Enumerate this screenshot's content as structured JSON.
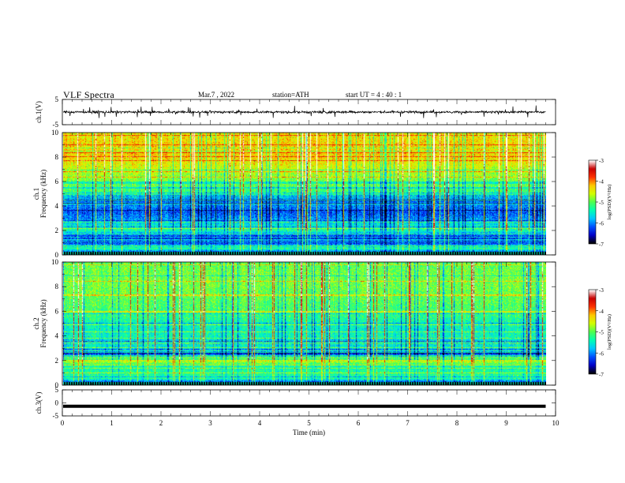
{
  "header": {
    "title": "VLF  Spectra",
    "date": "Mar.7  , 2022",
    "station": "station=ATH",
    "start_ut": "start  UT  =   4  : 40 : 1"
  },
  "colors": {
    "trace": "#000000",
    "frame": "#000000",
    "colormap": [
      "#000000",
      "#0000c8",
      "#0050ff",
      "#00c8ff",
      "#00ffb4",
      "#50ff50",
      "#d2ff00",
      "#ffc800",
      "#ff3200",
      "#c80000",
      "#ffffff"
    ]
  },
  "chart_data": [
    {
      "type": "line",
      "name": "ch1-waveform",
      "ylabel": "ch.1(V)",
      "ylim": [
        -5,
        5
      ],
      "yticks": [
        "5",
        "-5"
      ],
      "xlim": [
        0,
        10
      ],
      "description_values": {
        "mean_offset": 0.0,
        "typical_amplitude": 1.2
      },
      "grid": false
    },
    {
      "type": "heatmap",
      "name": "ch1-spectrogram",
      "ylabel": "ch.1\nFrequency  (kHz)",
      "ylim": [
        0,
        10
      ],
      "yticks": [
        "0",
        "2",
        "4",
        "6",
        "8",
        "10"
      ],
      "xlim": [
        0,
        9.8
      ],
      "colorbar": {
        "label": "log(PSD)(V²/Hz)",
        "range": [
          -7,
          -3
        ],
        "ticks": [
          "-3",
          "-4",
          "-5",
          "-6",
          "-7"
        ]
      },
      "band_levels_kHz_logPSD": [
        [
          0.0,
          -7.0
        ],
        [
          0.5,
          -5.2
        ],
        [
          1.0,
          -6.4
        ],
        [
          1.5,
          -6.3
        ],
        [
          2.0,
          -5.3
        ],
        [
          2.5,
          -5.6
        ],
        [
          3.0,
          -6.0
        ],
        [
          3.5,
          -6.2
        ],
        [
          4.0,
          -6.0
        ],
        [
          4.5,
          -5.9
        ],
        [
          5.0,
          -5.2
        ],
        [
          6.0,
          -4.9
        ],
        [
          7.0,
          -4.6
        ],
        [
          8.0,
          -4.3
        ],
        [
          9.0,
          -4.3
        ],
        [
          10.0,
          -4.4
        ]
      ]
    },
    {
      "type": "heatmap",
      "name": "ch2-spectrogram",
      "ylabel": "ch.2\nFrequency  (kHz)",
      "ylim": [
        0,
        10
      ],
      "yticks": [
        "0",
        "2",
        "4",
        "6",
        "8",
        "10"
      ],
      "xlim": [
        0,
        9.8
      ],
      "colorbar": {
        "label": "log(PSD)(V²/Hz)",
        "range": [
          -7,
          -3
        ],
        "ticks": [
          "-3",
          "-4",
          "-5",
          "-6",
          "-7"
        ]
      },
      "band_levels_kHz_logPSD": [
        [
          0.0,
          -7.0
        ],
        [
          0.5,
          -5.3
        ],
        [
          1.0,
          -5.3
        ],
        [
          1.5,
          -5.4
        ],
        [
          2.0,
          -4.5
        ],
        [
          2.5,
          -6.3
        ],
        [
          3.0,
          -5.5
        ],
        [
          3.5,
          -5.7
        ],
        [
          4.0,
          -5.4
        ],
        [
          4.5,
          -5.5
        ],
        [
          5.0,
          -5.4
        ],
        [
          6.0,
          -5.1
        ],
        [
          7.0,
          -5.0
        ],
        [
          8.0,
          -4.9
        ],
        [
          9.0,
          -4.9
        ],
        [
          10.0,
          -5.0
        ]
      ]
    },
    {
      "type": "line",
      "name": "ch3-waveform",
      "ylabel": "ch.3(V)",
      "ylim": [
        -5,
        5
      ],
      "yticks": [
        "5",
        "0",
        "-5"
      ],
      "xlim": [
        0,
        10
      ],
      "xlabel": "Time  (min)",
      "xticks": [
        "0",
        "1",
        "2",
        "3",
        "4",
        "5",
        "6",
        "7",
        "8",
        "9",
        "10"
      ],
      "constant_value": -1.3,
      "grid": false
    }
  ]
}
